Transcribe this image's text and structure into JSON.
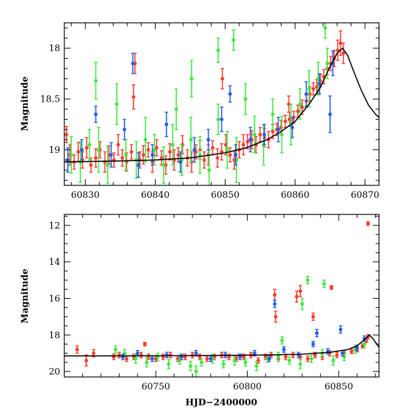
{
  "chart_data": [
    {
      "type": "scatter",
      "panel": "top",
      "xlabel": "",
      "ylabel": "Magnitude",
      "xlim": [
        60827,
        60872
      ],
      "ylim": [
        19.35,
        17.75
      ],
      "y_inverted": true,
      "xticks": [
        60830,
        60840,
        60850,
        60860,
        60870
      ],
      "xtick_labels": [
        "60830",
        "60840",
        "60850",
        "60860",
        "60870"
      ],
      "yticks": [
        18,
        18.5,
        19
      ],
      "ytick_labels": [
        "18",
        "18.5",
        "19"
      ],
      "grid": false,
      "colors": {
        "red": "#ff3b2e",
        "green": "#3ee83e",
        "blue": "#1f5fe8",
        "model": "#000000"
      },
      "series": [
        {
          "color": "red",
          "x": [
            60827.3,
            60827.8,
            60828.4,
            60829.0,
            60829.6,
            60830.2,
            60830.8,
            60831.5,
            60832.1,
            60832.8,
            60833.4,
            60834.1,
            60834.7,
            60835.3,
            60835.9,
            60836.6,
            60837.1,
            60837.8,
            60838.3,
            60839.0,
            60839.6,
            60840.2,
            60840.9,
            60841.5,
            60842.1,
            60842.7,
            60843.3,
            60843.9,
            60844.6,
            60845.2,
            60845.8,
            60846.4,
            60847.0,
            60847.6,
            60848.2,
            60848.9,
            60849.5,
            60850.1,
            60850.7,
            60851.3,
            60852.0,
            60852.6,
            60853.2,
            60853.8,
            60854.4,
            60855.0,
            60855.6,
            60856.2,
            60856.8,
            60857.4,
            60858.0,
            60858.6,
            60859.2,
            60859.8,
            60860.4,
            60861.0,
            60861.6,
            60862.1,
            60862.6,
            60863.1,
            60863.6,
            60864.1,
            60864.6,
            60865.1,
            60865.6,
            60866.1,
            60866.5,
            60866.9,
            60836.9,
            60849.6,
            60859.1
          ],
          "y": [
            18.85,
            19.05,
            19.12,
            19.02,
            19.1,
            18.98,
            19.15,
            19.08,
            19.0,
            19.12,
            19.05,
            19.1,
            18.95,
            19.08,
            19.12,
            19.02,
            18.15,
            19.1,
            19.05,
            19.0,
            19.12,
            18.98,
            19.08,
            19.15,
            19.02,
            19.1,
            19.05,
            18.95,
            19.08,
            19.12,
            19.02,
            19.0,
            19.1,
            19.05,
            18.98,
            19.08,
            19.02,
            18.95,
            19.05,
            19.1,
            19.0,
            18.95,
            18.92,
            18.9,
            18.95,
            18.85,
            18.88,
            18.9,
            18.82,
            18.8,
            18.78,
            18.72,
            18.7,
            18.68,
            18.62,
            18.58,
            18.52,
            18.45,
            18.4,
            18.38,
            18.32,
            18.28,
            18.2,
            18.15,
            18.1,
            18.02,
            17.95,
            18.05,
            18.48,
            18.3,
            18.55
          ],
          "err": [
            0.08,
            0.1,
            0.07,
            0.09,
            0.08,
            0.1,
            0.07,
            0.09,
            0.08,
            0.1,
            0.09,
            0.07,
            0.1,
            0.08,
            0.09,
            0.07,
            0.1,
            0.08,
            0.09,
            0.07,
            0.1,
            0.08,
            0.07,
            0.09,
            0.08,
            0.1,
            0.07,
            0.09,
            0.08,
            0.1,
            0.07,
            0.09,
            0.08,
            0.1,
            0.07,
            0.09,
            0.08,
            0.1,
            0.07,
            0.09,
            0.08,
            0.1,
            0.07,
            0.09,
            0.08,
            0.07,
            0.09,
            0.08,
            0.07,
            0.06,
            0.07,
            0.06,
            0.07,
            0.06,
            0.06,
            0.07,
            0.06,
            0.07,
            0.06,
            0.07,
            0.06,
            0.07,
            0.06,
            0.07,
            0.08,
            0.1,
            0.12,
            0.1,
            0.12,
            0.1,
            0.08
          ]
        },
        {
          "color": "green",
          "x": [
            60828.0,
            60829.3,
            60830.6,
            60831.9,
            60833.2,
            60834.5,
            60835.8,
            60837.3,
            60838.6,
            60839.9,
            60841.2,
            60842.5,
            60843.8,
            60845.1,
            60846.4,
            60847.7,
            60849.0,
            60850.3,
            60851.6,
            60852.9,
            60854.2,
            60855.5,
            60856.8,
            60858.1,
            60859.4,
            60860.7,
            60862.0,
            60863.3,
            60864.6,
            60831.5,
            60849.0,
            60851.2,
            60845.2,
            60864.3,
            60843.0
          ],
          "y": [
            19.05,
            19.12,
            18.95,
            19.0,
            19.15,
            18.55,
            19.05,
            19.1,
            18.9,
            19.0,
            19.15,
            18.95,
            19.1,
            18.9,
            19.05,
            19.2,
            18.7,
            19.0,
            19.1,
            18.5,
            18.85,
            18.95,
            18.65,
            18.85,
            18.75,
            18.55,
            18.4,
            18.3,
            18.15,
            18.32,
            18.02,
            17.92,
            18.3,
            17.8,
            18.6
          ],
          "err": [
            0.18,
            0.2,
            0.15,
            0.22,
            0.18,
            0.2,
            0.15,
            0.18,
            0.22,
            0.15,
            0.18,
            0.2,
            0.15,
            0.22,
            0.18,
            0.2,
            0.15,
            0.18,
            0.22,
            0.15,
            0.18,
            0.2,
            0.15,
            0.18,
            0.2,
            0.15,
            0.18,
            0.16,
            0.15,
            0.18,
            0.12,
            0.1,
            0.18,
            0.1,
            0.2
          ]
        },
        {
          "color": "blue",
          "x": [
            60827.5,
            60829.5,
            60831.5,
            60833.7,
            60835.6,
            60837.6,
            60839.6,
            60841.6,
            60843.6,
            60845.6,
            60847.6,
            60849.5,
            60851.5,
            60853.6,
            60855.6,
            60857.6,
            60859.6,
            60861.6,
            60863.5,
            60865.4,
            60836.8,
            60850.7,
            60865.0
          ],
          "y": [
            19.1,
            19.0,
            18.65,
            19.05,
            18.8,
            19.15,
            19.05,
            18.75,
            19.12,
            19.0,
            18.9,
            18.7,
            19.05,
            18.9,
            18.85,
            18.8,
            18.78,
            18.45,
            18.35,
            18.15,
            18.15,
            18.45,
            18.65
          ],
          "err": [
            0.12,
            0.1,
            0.08,
            0.12,
            0.1,
            0.12,
            0.1,
            0.12,
            0.1,
            0.12,
            0.1,
            0.12,
            0.1,
            0.12,
            0.1,
            0.12,
            0.1,
            0.12,
            0.1,
            0.12,
            0.1,
            0.08,
            0.18
          ]
        }
      ],
      "model_curve": {
        "x": [
          60827,
          60835,
          60840,
          60845,
          60850,
          60853,
          60856,
          60858,
          60860,
          60862,
          60863.5,
          60865,
          60866,
          60866.8,
          60867.5,
          60868.5,
          60869.5,
          60870.5,
          60871.5,
          60872
        ],
        "y": [
          19.12,
          19.11,
          19.1,
          19.08,
          19.03,
          18.98,
          18.9,
          18.82,
          18.72,
          18.55,
          18.4,
          18.18,
          18.05,
          18.0,
          18.07,
          18.25,
          18.42,
          18.56,
          18.65,
          18.68
        ]
      }
    },
    {
      "type": "scatter",
      "panel": "bottom",
      "xlabel": "HJD−2400000",
      "ylabel": "Magnitude",
      "xlim": [
        60700,
        60872
      ],
      "ylim": [
        20.3,
        11.4
      ],
      "y_inverted": true,
      "xticks": [
        60750,
        60800,
        60850
      ],
      "xtick_labels": [
        "60750",
        "60800",
        "60850"
      ],
      "yticks": [
        12,
        14,
        16,
        18,
        20
      ],
      "ytick_labels": [
        "12",
        "14",
        "16",
        "18",
        "20"
      ],
      "grid": false,
      "colors": {
        "red": "#ff3b2e",
        "green": "#3ee83e",
        "blue": "#1f5fe8",
        "model": "#000000"
      },
      "series": [
        {
          "color": "red",
          "x": [
            60707,
            60712,
            60716,
            60727,
            60730,
            60734,
            60738,
            60742,
            60746,
            60750,
            60754,
            60758,
            60762,
            60766,
            60770,
            60774,
            60778,
            60782,
            60786,
            60790,
            60794,
            60798,
            60802,
            60806,
            60810,
            60813,
            60817,
            60821,
            60825,
            60829,
            60833,
            60837,
            60841,
            60845,
            60849,
            60853,
            60857,
            60860,
            60863,
            60865,
            60866,
            60815,
            60815.5,
            60827,
            60829,
            60836,
            60846,
            60866,
            60744
          ],
          "y": [
            18.8,
            19.4,
            19.0,
            19.2,
            19.1,
            19.3,
            19.2,
            19.1,
            19.2,
            19.3,
            19.2,
            19.1,
            19.3,
            19.2,
            19.1,
            19.2,
            19.3,
            19.2,
            19.1,
            19.2,
            19.3,
            19.2,
            19.1,
            19.4,
            19.2,
            19.1,
            19.3,
            19.2,
            19.1,
            19.2,
            19.3,
            19.1,
            19.2,
            19.0,
            19.1,
            19.0,
            18.9,
            18.8,
            18.6,
            18.3,
            18.1,
            15.8,
            17.0,
            15.9,
            15.6,
            17.0,
            15.4,
            11.9,
            18.5
          ],
          "err": [
            0.2,
            0.3,
            0.2,
            0.15,
            0.15,
            0.15,
            0.15,
            0.15,
            0.15,
            0.15,
            0.15,
            0.15,
            0.15,
            0.15,
            0.15,
            0.15,
            0.15,
            0.15,
            0.15,
            0.15,
            0.15,
            0.15,
            0.15,
            0.15,
            0.15,
            0.15,
            0.15,
            0.15,
            0.15,
            0.15,
            0.15,
            0.15,
            0.15,
            0.15,
            0.15,
            0.15,
            0.12,
            0.12,
            0.12,
            0.12,
            0.12,
            0.3,
            0.3,
            0.3,
            0.3,
            0.2,
            0.1,
            0.1,
            0.1
          ]
        },
        {
          "color": "green",
          "x": [
            60728,
            60733,
            60739,
            60745,
            60751,
            60757,
            60763,
            60769,
            60775,
            60781,
            60787,
            60793,
            60799,
            60805,
            60811,
            60817,
            60823,
            60829,
            60835,
            60841,
            60847,
            60853,
            60859,
            60864,
            60830,
            60833,
            60842,
            60819,
            60772
          ],
          "y": [
            18.8,
            19.0,
            19.3,
            19.5,
            19.2,
            19.6,
            19.4,
            19.7,
            19.5,
            19.3,
            19.6,
            19.4,
            19.5,
            19.7,
            19.3,
            19.2,
            19.4,
            19.6,
            19.3,
            19.0,
            19.4,
            19.2,
            18.8,
            18.5,
            16.3,
            15.0,
            15.2,
            18.3,
            20.0
          ],
          "err": [
            0.2,
            0.2,
            0.25,
            0.25,
            0.2,
            0.25,
            0.2,
            0.25,
            0.2,
            0.25,
            0.2,
            0.25,
            0.2,
            0.25,
            0.2,
            0.25,
            0.2,
            0.25,
            0.2,
            0.2,
            0.25,
            0.2,
            0.2,
            0.2,
            0.3,
            0.2,
            0.2,
            0.2,
            0.3
          ]
        },
        {
          "color": "blue",
          "x": [
            60732,
            60740,
            60748,
            60756,
            60764,
            60772,
            60780,
            60788,
            60796,
            60804,
            60812,
            60820,
            60828,
            60836,
            60844,
            60852,
            60860,
            60815,
            60838,
            60851,
            60864
          ],
          "y": [
            19.2,
            19.0,
            19.3,
            19.1,
            19.2,
            19.0,
            19.3,
            19.1,
            19.2,
            19.0,
            19.3,
            18.8,
            19.1,
            18.5,
            18.9,
            19.0,
            18.7,
            16.3,
            17.9,
            17.7,
            18.2
          ],
          "err": [
            0.15,
            0.15,
            0.15,
            0.15,
            0.15,
            0.15,
            0.15,
            0.15,
            0.15,
            0.15,
            0.15,
            0.15,
            0.15,
            0.15,
            0.15,
            0.15,
            0.15,
            0.2,
            0.2,
            0.2,
            0.15
          ]
        }
      ],
      "model_curve": {
        "x": [
          60700,
          60740,
          60780,
          60810,
          60830,
          60845,
          60855,
          60860,
          60864,
          60866.8,
          60869,
          60872
        ],
        "y": [
          19.15,
          19.14,
          19.13,
          19.1,
          19.05,
          18.95,
          18.8,
          18.6,
          18.25,
          18.0,
          18.25,
          18.68
        ]
      }
    }
  ]
}
